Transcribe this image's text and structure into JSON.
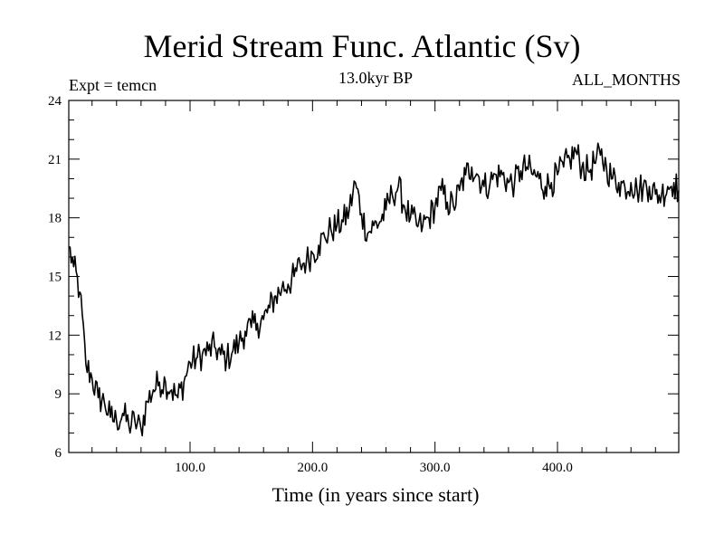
{
  "chart_data": {
    "type": "line",
    "title": "Merid Stream Func. Atlantic (Sv)",
    "subtitle": "13.0kyr BP",
    "experiment_label": "Expt = temcn",
    "period_label": "ALL_MONTHS",
    "xlabel": "Time (in years since start)",
    "ylabel": "",
    "xlim": [
      1,
      499
    ],
    "ylim": [
      6,
      24
    ],
    "x_ticks": [
      100,
      200,
      300,
      400
    ],
    "x_tick_labels": [
      "100.0",
      "200.0",
      "300.0",
      "400.0"
    ],
    "y_ticks": [
      6,
      9,
      12,
      15,
      18,
      21,
      24
    ],
    "y_tick_labels": [
      "6",
      "9",
      "12",
      "15",
      "18",
      "21",
      "24"
    ],
    "grid": false,
    "line_color": "#000000",
    "series": [
      {
        "name": "Merid Stream Func.",
        "x": [
          1,
          5,
          10,
          15,
          20,
          25,
          30,
          35,
          40,
          45,
          50,
          55,
          60,
          65,
          70,
          75,
          80,
          85,
          90,
          95,
          100,
          105,
          110,
          115,
          120,
          125,
          130,
          135,
          140,
          145,
          150,
          155,
          160,
          165,
          170,
          175,
          180,
          185,
          190,
          195,
          200,
          205,
          210,
          215,
          220,
          225,
          230,
          235,
          240,
          245,
          250,
          255,
          260,
          265,
          270,
          275,
          280,
          285,
          290,
          295,
          300,
          305,
          310,
          315,
          320,
          325,
          330,
          335,
          340,
          345,
          350,
          355,
          360,
          365,
          370,
          375,
          380,
          385,
          390,
          395,
          400,
          405,
          410,
          415,
          420,
          425,
          430,
          435,
          440,
          445,
          450,
          455,
          460,
          465,
          470,
          475,
          480,
          485,
          490,
          495,
          499
        ],
        "values": [
          16.5,
          15.5,
          14.2,
          10.5,
          9.8,
          8.8,
          8.6,
          7.8,
          7.6,
          8.0,
          7.4,
          7.6,
          7.2,
          8.6,
          9.2,
          9.6,
          9.6,
          9.2,
          8.8,
          9.6,
          10.6,
          10.8,
          11.0,
          11.2,
          11.4,
          11.0,
          10.8,
          11.2,
          11.6,
          12.2,
          12.4,
          12.6,
          12.8,
          13.4,
          14.0,
          14.4,
          14.6,
          15.0,
          15.6,
          15.8,
          16.2,
          16.6,
          17.0,
          17.4,
          17.6,
          17.8,
          18.4,
          19.8,
          18.2,
          17.2,
          17.6,
          17.8,
          18.4,
          19.2,
          19.6,
          18.6,
          18.0,
          17.6,
          17.6,
          18.0,
          18.6,
          19.4,
          18.8,
          18.6,
          19.4,
          20.2,
          20.6,
          20.2,
          19.6,
          19.8,
          20.2,
          20.2,
          19.8,
          19.8,
          20.4,
          20.6,
          20.2,
          20.0,
          19.6,
          19.8,
          20.2,
          20.6,
          21.0,
          21.4,
          20.6,
          20.4,
          20.8,
          21.2,
          20.6,
          20.0,
          19.8,
          19.6,
          19.8,
          19.4,
          19.6,
          19.6,
          19.2,
          19.2,
          19.6,
          19.8,
          19.4
        ]
      }
    ]
  }
}
